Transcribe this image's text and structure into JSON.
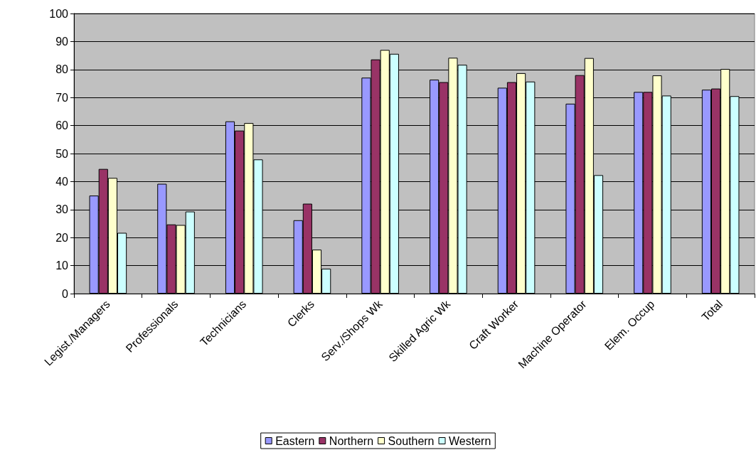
{
  "chart_data": {
    "type": "bar",
    "categories": [
      "Legist./Managers",
      "Professionals",
      "Technicians",
      "Clerks",
      "Serv./Shops Wk",
      "Skilled Agric Wk",
      "Craft Worker",
      "Machine Operator",
      "Elem. Occup",
      "Total"
    ],
    "series": [
      {
        "name": "Eastern",
        "color": "#9999ff",
        "values": [
          35,
          39.2,
          61.5,
          26.2,
          77.1,
          76.4,
          73.5,
          67.8,
          72,
          72.8
        ]
      },
      {
        "name": "Northern",
        "color": "#993366",
        "values": [
          44.5,
          24.7,
          58.2,
          32.1,
          83.6,
          75.5,
          75.5,
          78,
          72,
          73.2
        ]
      },
      {
        "name": "Southern",
        "color": "#ffffcc",
        "values": [
          41.3,
          24.5,
          60.9,
          15.7,
          87,
          84.2,
          78.7,
          84.1,
          77.9,
          80.2
        ]
      },
      {
        "name": "Western",
        "color": "#ccffff",
        "values": [
          21.7,
          29.3,
          47.9,
          8.9,
          85.6,
          81.7,
          75.7,
          42.3,
          70.7,
          70.5
        ]
      }
    ],
    "ylim": [
      0,
      100
    ],
    "yticks": [
      0,
      10,
      20,
      30,
      40,
      50,
      60,
      70,
      80,
      90,
      100
    ],
    "grid": "y",
    "legend": "bottom"
  }
}
